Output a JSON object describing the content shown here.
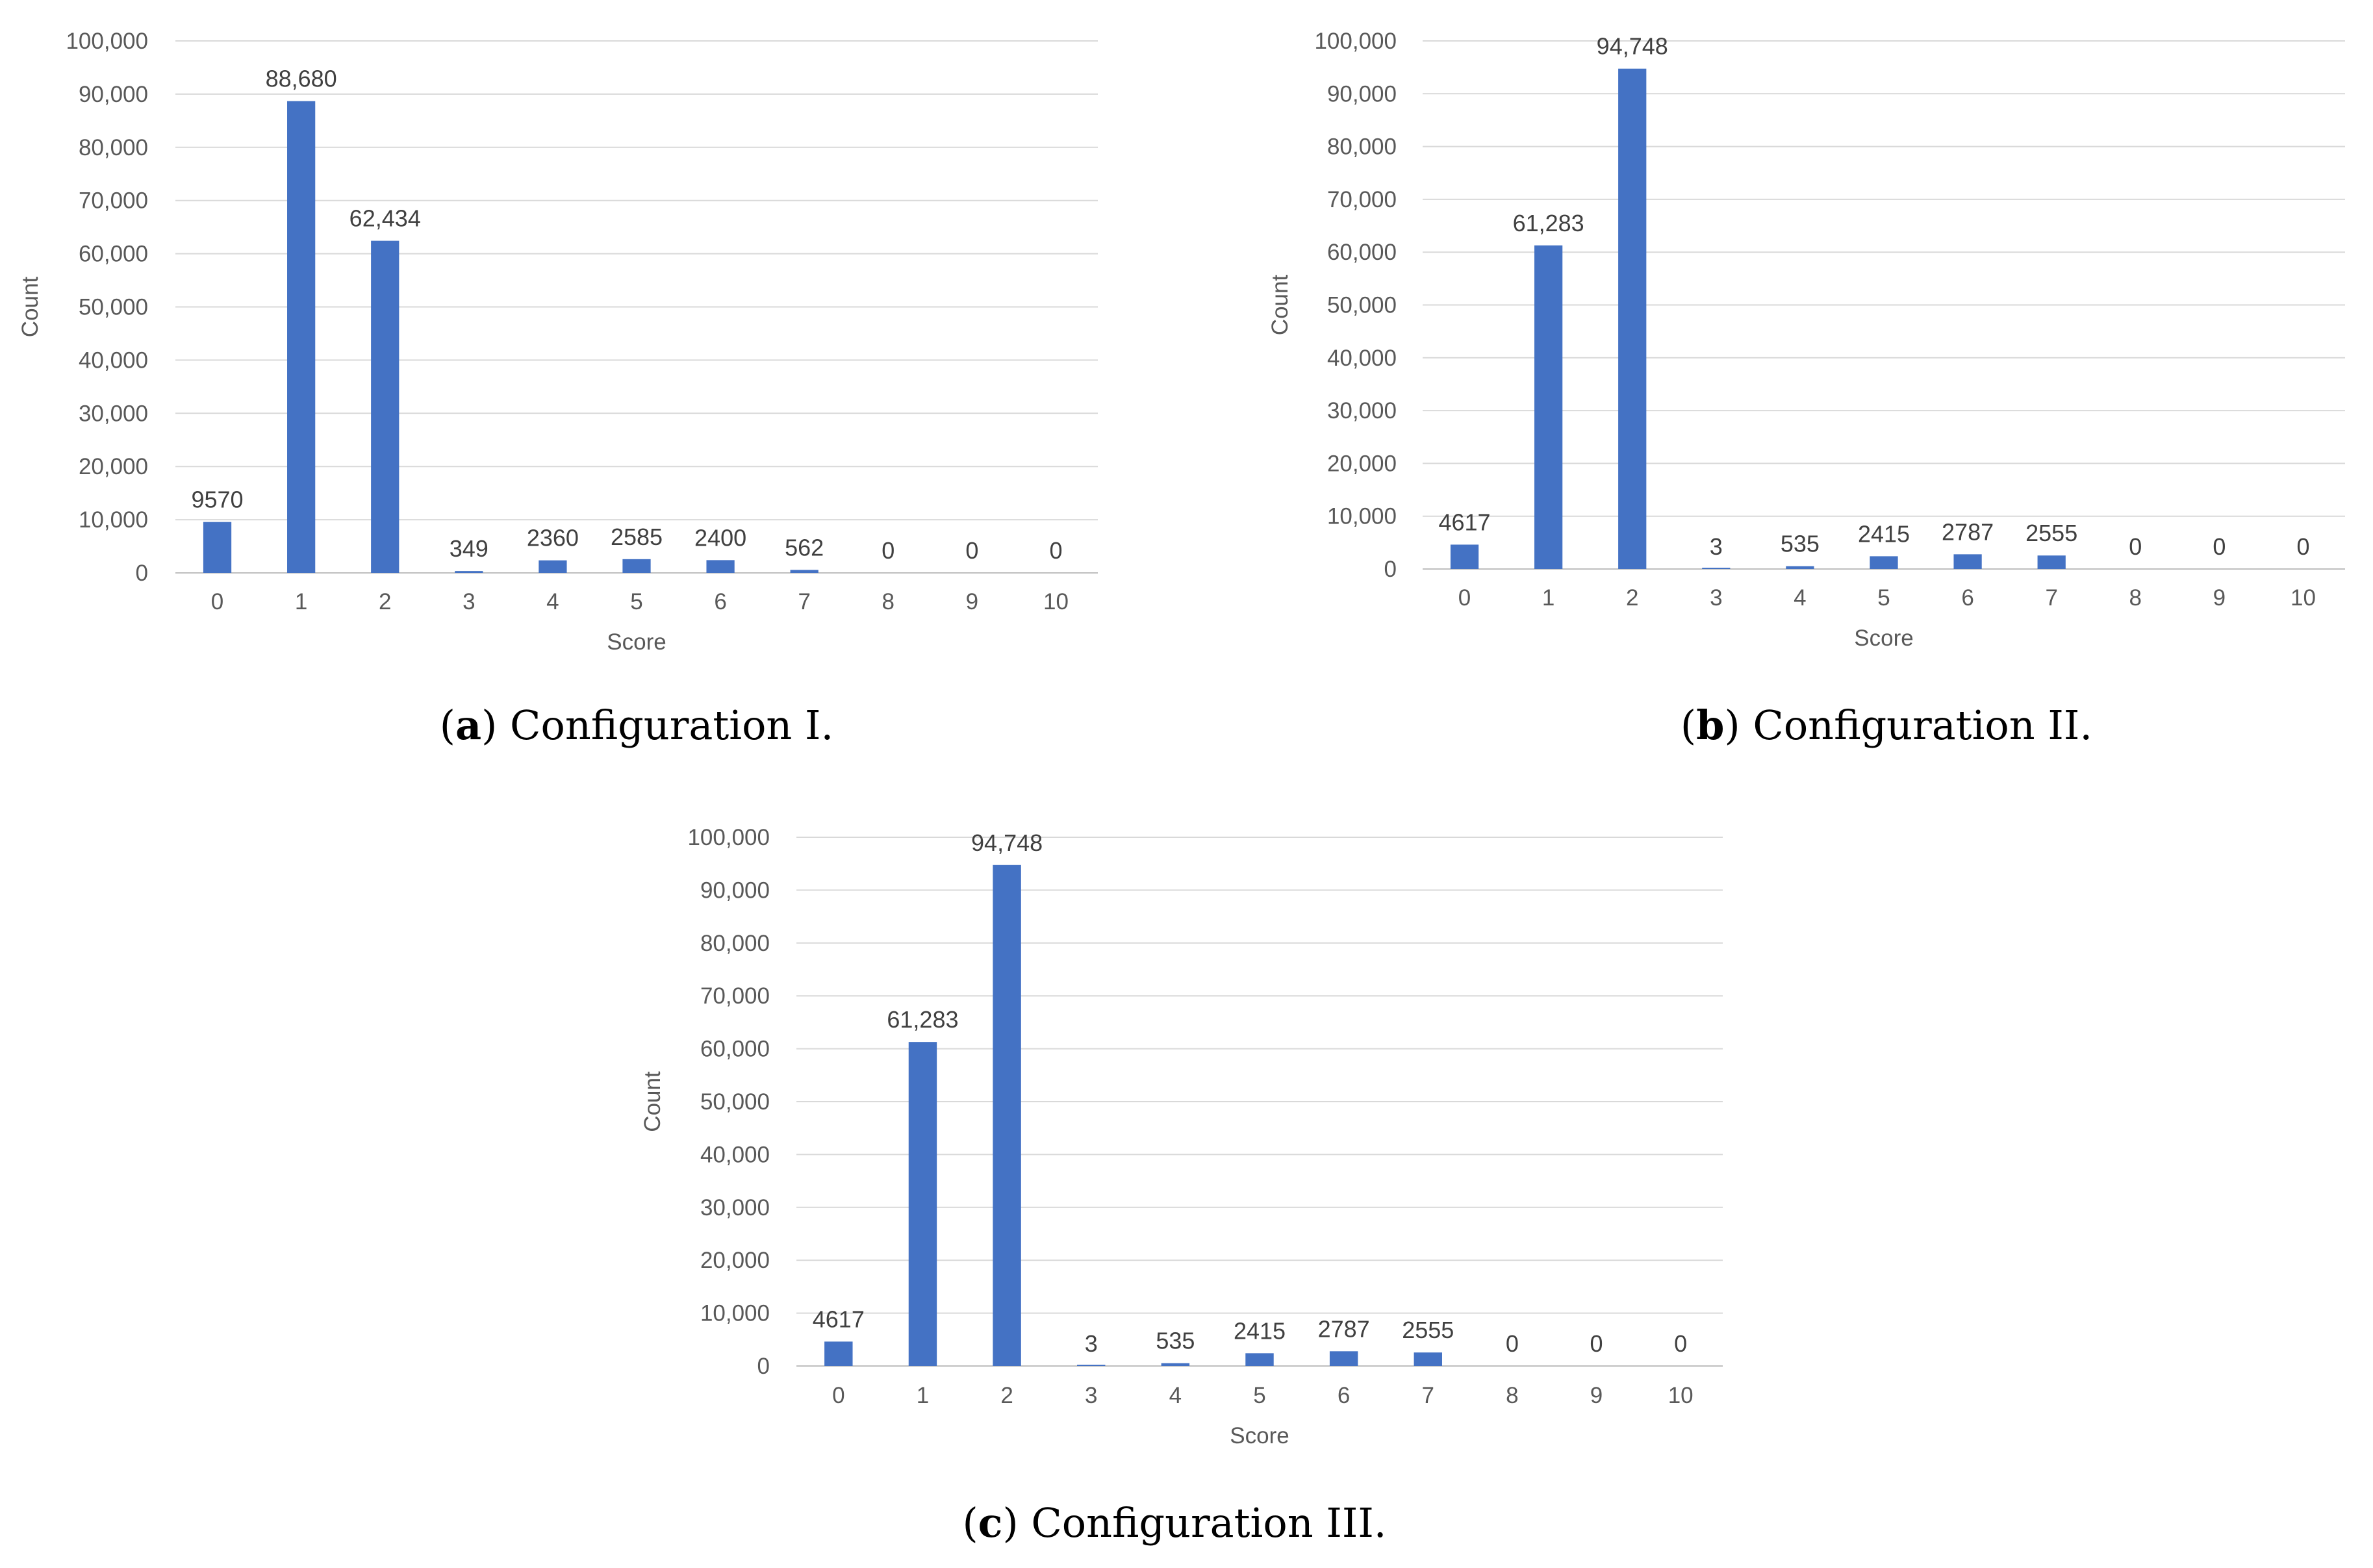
{
  "figure": {
    "captions": [
      {
        "letter": "a",
        "text": "Configuration I."
      },
      {
        "letter": "b",
        "text": "Configuration II."
      },
      {
        "letter": "c",
        "text": "Configuration III."
      }
    ]
  },
  "chart_data": [
    {
      "type": "bar",
      "id": "a",
      "title": "",
      "xlabel": "Score",
      "ylabel": "Count",
      "categories": [
        "0",
        "1",
        "2",
        "3",
        "4",
        "5",
        "6",
        "7",
        "8",
        "9",
        "10"
      ],
      "values": [
        9570,
        88680,
        62434,
        349,
        2360,
        2585,
        2400,
        562,
        0,
        0,
        0
      ],
      "data_labels": [
        "9570",
        "88,680",
        "62,434",
        "349",
        "2360",
        "2585",
        "2400",
        "562",
        "0",
        "0",
        "0"
      ],
      "yticks": [
        "0",
        "10,000",
        "20,000",
        "30,000",
        "40,000",
        "50,000",
        "60,000",
        "70,000",
        "80,000",
        "90,000",
        "100,000"
      ],
      "ylim": [
        0,
        100000
      ],
      "grid": true,
      "bar_color": "#4472c4"
    },
    {
      "type": "bar",
      "id": "b",
      "title": "",
      "xlabel": "Score",
      "ylabel": "Count",
      "categories": [
        "0",
        "1",
        "2",
        "3",
        "4",
        "5",
        "6",
        "7",
        "8",
        "9",
        "10"
      ],
      "values": [
        4617,
        61283,
        94748,
        3,
        535,
        2415,
        2787,
        2555,
        0,
        0,
        0
      ],
      "data_labels": [
        "4617",
        "61,283",
        "94,748",
        "3",
        "535",
        "2415",
        "2787",
        "2555",
        "0",
        "0",
        "0"
      ],
      "yticks": [
        "0",
        "10,000",
        "20,000",
        "30,000",
        "40,000",
        "50,000",
        "60,000",
        "70,000",
        "80,000",
        "90,000",
        "100,000"
      ],
      "ylim": [
        0,
        100000
      ],
      "grid": true,
      "bar_color": "#4472c4"
    },
    {
      "type": "bar",
      "id": "c",
      "title": "",
      "xlabel": "Score",
      "ylabel": "Count",
      "categories": [
        "0",
        "1",
        "2",
        "3",
        "4",
        "5",
        "6",
        "7",
        "8",
        "9",
        "10"
      ],
      "values": [
        4617,
        61283,
        94748,
        3,
        535,
        2415,
        2787,
        2555,
        0,
        0,
        0
      ],
      "data_labels": [
        "4617",
        "61,283",
        "94,748",
        "3",
        "535",
        "2415",
        "2787",
        "2555",
        "0",
        "0",
        "0"
      ],
      "yticks": [
        "0",
        "10,000",
        "20,000",
        "30,000",
        "40,000",
        "50,000",
        "60,000",
        "70,000",
        "80,000",
        "90,000",
        "100,000"
      ],
      "ylim": [
        0,
        100000
      ],
      "grid": true,
      "bar_color": "#4472c4"
    }
  ]
}
